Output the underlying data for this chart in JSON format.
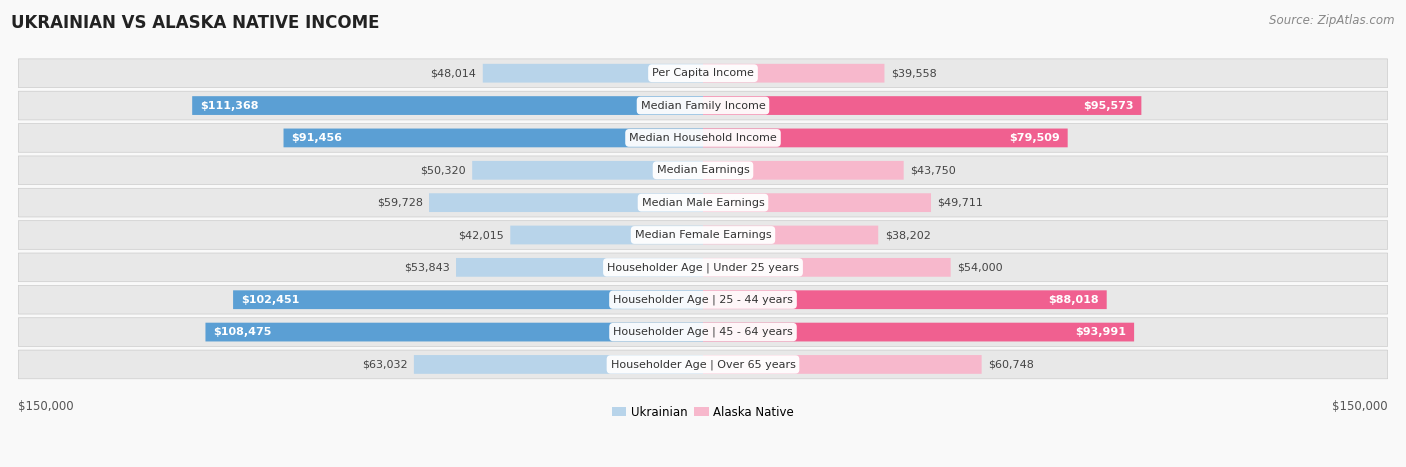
{
  "title": "UKRAINIAN VS ALASKA NATIVE INCOME",
  "source": "Source: ZipAtlas.com",
  "categories": [
    "Per Capita Income",
    "Median Family Income",
    "Median Household Income",
    "Median Earnings",
    "Median Male Earnings",
    "Median Female Earnings",
    "Householder Age | Under 25 years",
    "Householder Age | 25 - 44 years",
    "Householder Age | 45 - 64 years",
    "Householder Age | Over 65 years"
  ],
  "ukrainian_values": [
    48014,
    111368,
    91456,
    50320,
    59728,
    42015,
    53843,
    102451,
    108475,
    63032
  ],
  "alaska_native_values": [
    39558,
    95573,
    79509,
    43750,
    49711,
    38202,
    54000,
    88018,
    93991,
    60748
  ],
  "ukrainian_labels": [
    "$48,014",
    "$111,368",
    "$91,456",
    "$50,320",
    "$59,728",
    "$42,015",
    "$53,843",
    "$102,451",
    "$108,475",
    "$63,032"
  ],
  "alaska_native_labels": [
    "$39,558",
    "$95,573",
    "$79,509",
    "$43,750",
    "$49,711",
    "$38,202",
    "$54,000",
    "$88,018",
    "$93,991",
    "$60,748"
  ],
  "max_value": 150000,
  "ukr_inside_threshold": 70000,
  "ak_inside_threshold": 70000,
  "ukrainian_color_light": "#b8d4ea",
  "ukrainian_color_dark": "#5b9fd4",
  "alaska_color_light": "#f7b8cc",
  "alaska_color_dark": "#f06090",
  "background_color": "#f9f9f9",
  "row_bg_color": "#e8e8e8",
  "title_fontsize": 12,
  "source_fontsize": 8.5,
  "bar_label_fontsize": 8,
  "category_fontsize": 8,
  "axis_label_fontsize": 8.5
}
